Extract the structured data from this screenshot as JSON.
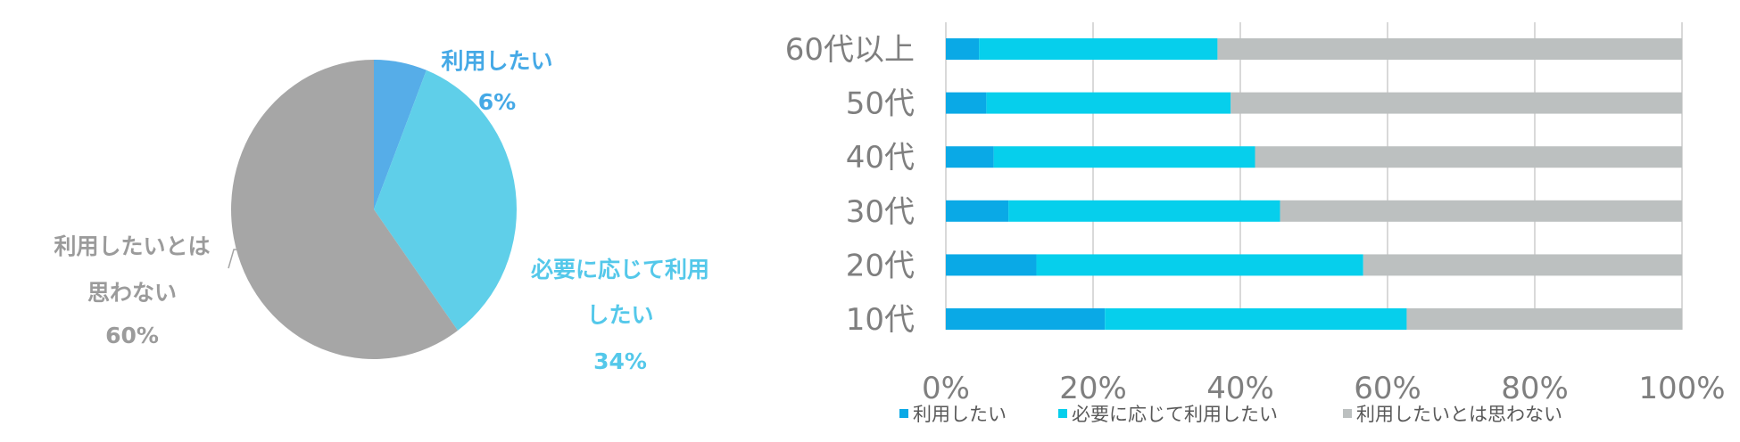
{
  "colors": {
    "pie_slice1": "#56ade8",
    "pie_slice2": "#5fcfe9",
    "pie_slice3": "#a6a6a6",
    "bar_series1": "#0aa9e6",
    "bar_series2": "#06cfec",
    "bar_series3": "#bcc0c0",
    "grid": "#d9d9d9",
    "axis_text": "#7f7f7f",
    "legend_text": "#595959"
  },
  "chart_data": [
    {
      "type": "pie",
      "slices": [
        {
          "label_lines": [
            "利用したい"
          ],
          "value": 6,
          "pct": "6%"
        },
        {
          "label_lines": [
            "必要に応じて利用",
            "したい"
          ],
          "value": 34,
          "pct": "34%"
        },
        {
          "label_lines": [
            "利用したいとは",
            "思わない"
          ],
          "value": 60,
          "pct": "60%"
        }
      ]
    },
    {
      "type": "bar",
      "orientation": "horizontal",
      "stacked": "percent",
      "categories": [
        "60代以上",
        "50代",
        "40代",
        "30代",
        "20代",
        "10代"
      ],
      "series": [
        {
          "name": "利用したい",
          "values": [
            4.5,
            5.5,
            6.5,
            8.5,
            12.3,
            21.6
          ]
        },
        {
          "name": "必要に応じて利用したい",
          "values": [
            32.4,
            33.2,
            35.5,
            36.9,
            44.4,
            41.0
          ]
        },
        {
          "name": "利用したいとは思わない",
          "values": [
            63.1,
            61.3,
            58.0,
            54.6,
            43.3,
            37.4
          ]
        }
      ],
      "xticks": [
        "0%",
        "20%",
        "40%",
        "60%",
        "80%",
        "100%"
      ],
      "xlim": [
        0,
        100
      ],
      "grid": true,
      "legend_position": "bottom"
    }
  ]
}
